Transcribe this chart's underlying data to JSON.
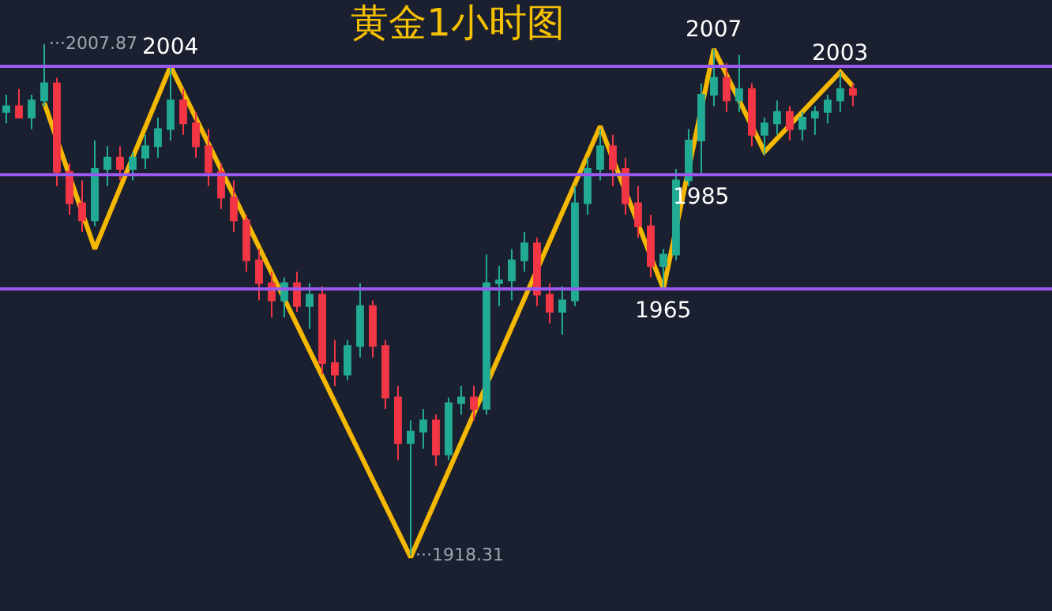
{
  "chart_data": {
    "type": "candlestick",
    "title": "黄金1小时图",
    "categories": [
      null,
      null,
      null,
      null,
      null,
      null,
      null,
      null,
      null,
      null,
      null,
      null,
      null,
      null,
      null,
      null,
      null,
      null,
      null,
      null,
      null,
      null,
      null,
      null,
      null,
      null,
      null,
      null,
      null,
      null,
      null,
      null,
      null,
      null,
      null,
      null,
      null,
      null,
      null,
      null,
      null,
      null,
      null,
      null,
      null,
      null,
      null,
      null,
      null,
      null,
      null,
      null,
      null,
      null,
      null,
      null,
      null,
      null,
      null,
      null,
      null,
      null,
      null,
      null,
      null,
      null,
      null,
      null
    ],
    "ohlc": [
      [
        1996,
        1999,
        1994,
        1997
      ],
      [
        1997,
        2000,
        1995,
        1995
      ],
      [
        1995,
        1999,
        1993,
        1998
      ],
      [
        1998,
        2007.87,
        1997,
        2001
      ],
      [
        2001,
        2002,
        1983,
        1985.5
      ],
      [
        1985.5,
        1987,
        1978,
        1980
      ],
      [
        1980,
        1984,
        1975,
        1977
      ],
      [
        1977,
        1991,
        1976,
        1986
      ],
      [
        1986,
        1990,
        1983,
        1988
      ],
      [
        1988,
        1990,
        1984,
        1986
      ],
      [
        1986,
        1989,
        1984,
        1988
      ],
      [
        1988,
        1992,
        1986,
        1990
      ],
      [
        1990,
        1995,
        1988,
        1993
      ],
      [
        1993,
        2004,
        1991,
        1998
      ],
      [
        1998,
        2000,
        1992,
        1994
      ],
      [
        1994,
        1996,
        1988,
        1990
      ],
      [
        1990,
        1993,
        1983,
        1985.5
      ],
      [
        1985.5,
        1987,
        1979,
        1981
      ],
      [
        1981,
        1984,
        1975,
        1977
      ],
      [
        1977,
        1978,
        1968,
        1970
      ],
      [
        1970,
        1972,
        1963,
        1966
      ],
      [
        1966,
        1968,
        1960,
        1963
      ],
      [
        1963,
        1967,
        1960,
        1966
      ],
      [
        1966,
        1968,
        1961,
        1962
      ],
      [
        1962,
        1966,
        1958,
        1964
      ],
      [
        1964,
        1965.5,
        1950,
        1952
      ],
      [
        1952,
        1956,
        1948,
        1950
      ],
      [
        1950,
        1956,
        1949,
        1955
      ],
      [
        1955,
        1966,
        1953,
        1962
      ],
      [
        1962,
        1963,
        1953,
        1955
      ],
      [
        1955,
        1956,
        1944,
        1946
      ],
      [
        1946,
        1948,
        1935,
        1938
      ],
      [
        1938,
        1942,
        1918.31,
        1940
      ],
      [
        1940,
        1944,
        1937,
        1942
      ],
      [
        1942,
        1943,
        1934,
        1936
      ],
      [
        1936,
        1946,
        1935,
        1945
      ],
      [
        1945,
        1948,
        1943,
        1946
      ],
      [
        1946,
        1948,
        1942,
        1944
      ],
      [
        1944,
        1971,
        1943,
        1966
      ],
      [
        1966,
        1969,
        1962,
        1966.5
      ],
      [
        1966.5,
        1972,
        1963,
        1970
      ],
      [
        1970,
        1975,
        1968,
        1973
      ],
      [
        1973,
        1974,
        1962,
        1964
      ],
      [
        1964,
        1966,
        1959,
        1961
      ],
      [
        1961,
        1965.5,
        1957,
        1963
      ],
      [
        1963,
        1983,
        1962,
        1980
      ],
      [
        1980,
        1988,
        1978,
        1986
      ],
      [
        1986,
        1993,
        1984,
        1990
      ],
      [
        1990,
        1992,
        1983,
        1986
      ],
      [
        1986,
        1988,
        1978,
        1980
      ],
      [
        1980,
        1983,
        1974,
        1976
      ],
      [
        1976,
        1978,
        1967,
        1969
      ],
      [
        1969,
        1972,
        1965,
        1971
      ],
      [
        1971,
        1986,
        1970,
        1984
      ],
      [
        1984,
        1993,
        1983,
        1991
      ],
      [
        1991,
        2001,
        1985,
        1999
      ],
      [
        1999,
        2007,
        1997,
        2002
      ],
      [
        2002,
        2004.5,
        1996,
        1998
      ],
      [
        1998,
        2006,
        1996,
        2000
      ],
      [
        2000,
        2001,
        1990,
        1992
      ],
      [
        1992,
        1995,
        1988.5,
        1994
      ],
      [
        1994,
        1998,
        1992,
        1996
      ],
      [
        1996,
        1997,
        1991,
        1993
      ],
      [
        1993,
        1996,
        1991,
        1995
      ],
      [
        1995,
        1997,
        1992,
        1996
      ],
      [
        1996,
        1999,
        1994,
        1998
      ],
      [
        1998,
        2003,
        1996,
        2000
      ],
      [
        2000,
        2001,
        1997,
        1999
      ]
    ],
    "colors": [
      "#22ab94",
      "#f23645",
      "#22ab94",
      "#22ab94",
      "#f23645",
      "#f23645",
      "#f23645",
      "#22ab94",
      "#22ab94",
      "#f23645",
      "#22ab94",
      "#22ab94",
      "#22ab94",
      "#22ab94",
      "#f23645",
      "#f23645",
      "#f23645",
      "#f23645",
      "#f23645",
      "#f23645",
      "#f23645",
      "#f23645",
      "#22ab94",
      "#f23645",
      "#22ab94",
      "#f23645",
      "#f23645",
      "#22ab94",
      "#22ab94",
      "#f23645",
      "#f23645",
      "#f23645",
      "#22ab94",
      "#22ab94",
      "#f23645",
      "#22ab94",
      "#22ab94",
      "#f23645",
      "#22ab94",
      "#22ab94",
      "#22ab94",
      "#22ab94",
      "#f23645",
      "#f23645",
      "#22ab94",
      "#22ab94",
      "#22ab94",
      "#22ab94",
      "#f23645",
      "#f23645",
      "#f23645",
      "#f23645",
      "#22ab94",
      "#22ab94",
      "#22ab94",
      "#22ab94",
      "#22ab94",
      "#f23645",
      "#22ab94",
      "#f23645",
      "#22ab94",
      "#22ab94",
      "#f23645",
      "#22ab94",
      "#22ab94",
      "#22ab94",
      "#22ab94",
      "#f23645"
    ],
    "series": [
      {
        "type": "line",
        "color": "#f5b800",
        "values": [
          null,
          null,
          null,
          1997.6,
          null,
          null,
          null,
          1972,
          null,
          null,
          null,
          null,
          null,
          2004,
          null,
          null,
          null,
          null,
          null,
          null,
          null,
          null,
          null,
          null,
          null,
          null,
          null,
          null,
          null,
          null,
          null,
          null,
          1918,
          null,
          null,
          null,
          null,
          null,
          null,
          null,
          null,
          null,
          null,
          null,
          null,
          null,
          null,
          1993.5,
          null,
          null,
          null,
          null,
          1965,
          null,
          null,
          null,
          2007,
          null,
          null,
          null,
          1989,
          null,
          null,
          null,
          null,
          null,
          2003,
          2000.5
        ]
      }
    ],
    "ylim": [
      1908.6,
      2015.6
    ],
    "legend": false,
    "ref_lines": [
      {
        "axis": "y",
        "value": 2004,
        "color": "#9b59f0"
      },
      {
        "axis": "y",
        "value": 1985,
        "color": "#9b59f0"
      },
      {
        "axis": "y",
        "value": 1965,
        "color": "#9b59f0"
      }
    ],
    "annotations": [
      "···2007.87",
      {
        "text": "2004",
        "y": 2004
      },
      "···1918.31",
      {
        "text": "1965",
        "y": 1965
      },
      {
        "text": "1985",
        "y": 1985
      },
      {
        "text": "2007",
        "y": 2007
      },
      {
        "text": "2003",
        "y": 2003
      }
    ]
  }
}
